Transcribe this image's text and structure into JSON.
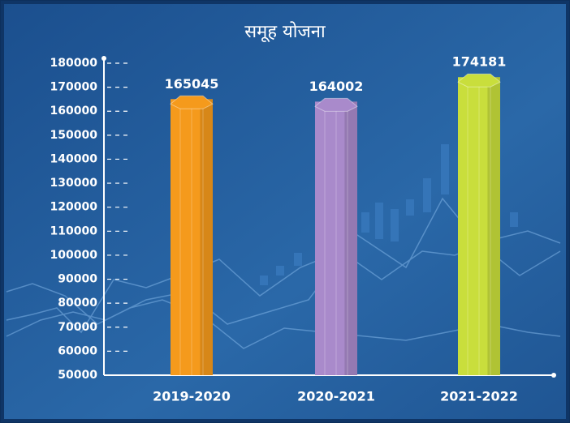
{
  "chart_data": {
    "type": "bar",
    "title": "समूह योजना",
    "categories": [
      "2019-2020",
      "2020-2021",
      "2021-2022"
    ],
    "values": [
      165045,
      164002,
      174181
    ],
    "colors": [
      "#f59a1c",
      "#a98acb",
      "#c9de3c"
    ],
    "ylim": [
      50000,
      180000
    ],
    "yticks": [
      50000,
      60000,
      70000,
      80000,
      90000,
      100000,
      110000,
      120000,
      130000,
      140000,
      150000,
      160000,
      170000,
      180000
    ]
  }
}
